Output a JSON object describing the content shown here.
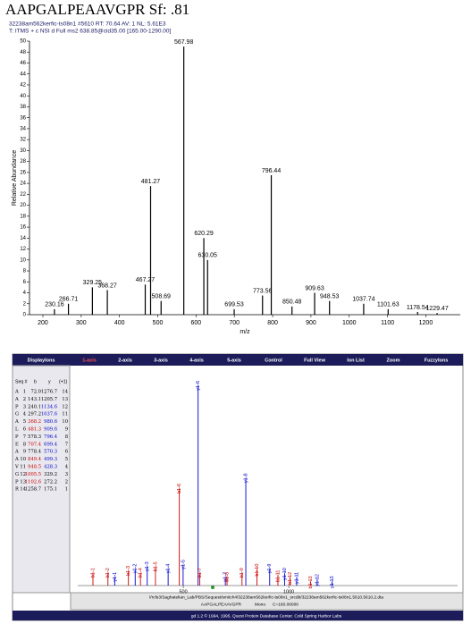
{
  "chart_data": [
    {
      "type": "stick",
      "title": "AAPGALPEAAVGPR Sf: .81",
      "subtitle": [
        "32238am562kerfic-ts08n1 #5610  RT: 70.64  AV: 1  NL: 5.61E3",
        "T: ITMS + c NSI d Full ms2 638.85@cid35.00 [165.00-1290.00]"
      ],
      "xlabel": "m/z",
      "ylabel": "Relative Abundance",
      "color": "#000000",
      "x": [
        230.16,
        266.71,
        329.25,
        368.27,
        467.27,
        481.27,
        508.69,
        567.98,
        620.29,
        630.05,
        699.53,
        773.56,
        796.44,
        850.48,
        909.63,
        948.53,
        1037.74,
        1101.63,
        1178.54,
        1229.47
      ],
      "values": [
        1,
        2,
        5,
        4.5,
        5.5,
        23.5,
        2.5,
        49,
        14,
        10,
        1,
        3.5,
        25.5,
        1.5,
        4,
        2.5,
        2,
        1,
        0.5,
        0.3
      ],
      "xlim": [
        165,
        1290
      ],
      "xticks": [
        200,
        300,
        400,
        500,
        600,
        700,
        800,
        900,
        1000,
        1100,
        1200
      ],
      "ylim": [
        0,
        50
      ],
      "yticks": [
        0,
        2,
        4,
        6,
        8,
        10,
        12,
        14,
        16,
        18,
        20,
        22,
        24,
        26,
        28,
        30,
        32,
        34,
        36,
        38,
        40,
        42,
        44,
        46,
        48,
        50
      ]
    },
    {
      "type": "ion-stick",
      "b_color": "#cc0000",
      "y_color": "#0000cc",
      "color": "#555555",
      "labels": [
        "b1-1",
        "b1-2",
        "y1-1",
        "b1-3",
        "y1-2",
        "b1-4",
        "y1-3",
        "b1-5",
        "y1-4",
        "b1-6",
        "y1-5",
        "y1-6",
        "b1-7",
        "y1-7",
        "b1-8",
        "b1-9",
        "y1-8",
        "b1-10",
        "y1-9",
        "b1-11",
        "y1-10",
        "b1-12",
        "y1-11",
        "b1-13",
        "y1-12",
        "y1-13"
      ],
      "x": [
        72.0,
        143.1,
        175.1,
        240.1,
        272.2,
        297.2,
        329.2,
        368.2,
        428.3,
        481.3,
        499.3,
        570.3,
        578.3,
        699.4,
        707.4,
        778.4,
        796.4,
        849.4,
        909.6,
        948.5,
        980.6,
        1005.5,
        1037.6,
        1102.6,
        1134.6,
        1205.7
      ],
      "values": [
        3,
        3,
        2,
        3.5,
        4,
        3,
        4.5,
        4.5,
        4,
        23.5,
        5,
        48.5,
        3,
        2,
        2,
        3,
        26,
        4,
        4,
        2.5,
        3,
        2,
        2,
        1,
        1.5,
        1
      ],
      "xlim": [
        0,
        1800
      ],
      "xticks": [
        500,
        1000
      ],
      "ylim": [
        0,
        50
      ]
    }
  ],
  "toolbar": [
    "DisplayIons",
    "1-axis",
    "2-axis",
    "3-axis",
    "4-axis",
    "5-axis",
    "Control",
    "Full View",
    "Ion List",
    "Zoom",
    "FuzzyIons"
  ],
  "ion_table": {
    "header": [
      "Seq #",
      "b",
      "y",
      "(+1)"
    ],
    "rows": [
      [
        "A",
        "1",
        "72.0",
        "1276.7",
        "14"
      ],
      [
        "A",
        "2",
        "143.1",
        "1205.7",
        "13"
      ],
      [
        "P",
        "3",
        "240.1",
        "1134.6",
        "12"
      ],
      [
        "G",
        "4",
        "297.2",
        "1037.6",
        "11"
      ],
      [
        "A",
        "5",
        "368.2",
        "980.6",
        "10"
      ],
      [
        "L",
        "6",
        "481.3",
        "909.6",
        "9"
      ],
      [
        "P",
        "7",
        "578.3",
        "796.4",
        "8"
      ],
      [
        "E",
        "8",
        "707.4",
        "699.4",
        "7"
      ],
      [
        "A",
        "9",
        "778.4",
        "570.3",
        "6"
      ],
      [
        "A",
        "10",
        "849.4",
        "499.3",
        "5"
      ],
      [
        "V",
        "11",
        "948.5",
        "428.3",
        "4"
      ],
      [
        "G",
        "12",
        "1005.5",
        "329.2",
        "3"
      ],
      [
        "P",
        "13",
        "1102.6",
        "272.2",
        "2"
      ],
      [
        "R",
        "14",
        "1258.7",
        "175.1",
        "1"
      ]
    ],
    "b_match": [
      false,
      false,
      false,
      false,
      true,
      true,
      false,
      true,
      false,
      true,
      true,
      true,
      true,
      false
    ],
    "y_match": [
      false,
      false,
      true,
      true,
      true,
      true,
      true,
      true,
      true,
      true,
      true,
      false,
      false,
      false
    ]
  },
  "footer": {
    "path": "//rcfs3/Saghatelian_Lab/PBS/Sequest/smitch4/32238am562kerfic-ts08n1_srcdb/32238am562kerfic-ts08n1.5610.5610.2.dta",
    "peptide": "AAPGALPEAAVGPR",
    "mass_type": "Mono",
    "modification": "C=160.00000",
    "copyright": "gd 1.2 © 1994, 1995. Quest Protein Database Center. Cold Spring Harbor Labs"
  }
}
